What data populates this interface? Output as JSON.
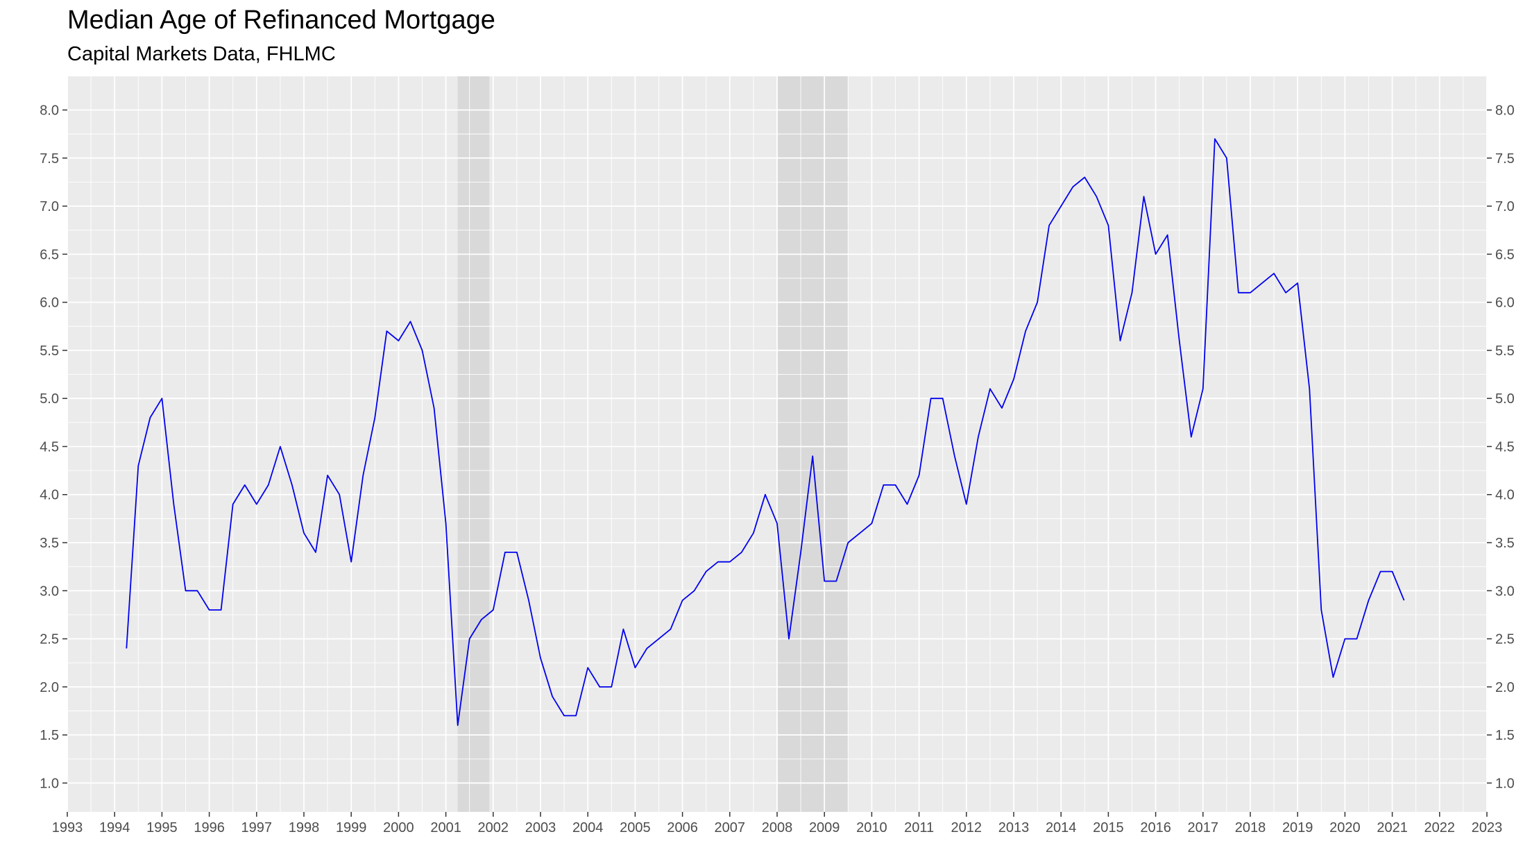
{
  "chart_data": {
    "type": "line",
    "title": "Median Age of Refinanced Mortgage",
    "subtitle": "Capital Markets Data, FHLMC",
    "xlabel": "",
    "ylabel": "",
    "xlim": [
      1993,
      2023
    ],
    "ylim": [
      0.7,
      8.35
    ],
    "x_ticks": [
      1993,
      1994,
      1995,
      1996,
      1997,
      1998,
      1999,
      2000,
      2001,
      2002,
      2003,
      2004,
      2005,
      2006,
      2007,
      2008,
      2009,
      2010,
      2011,
      2012,
      2013,
      2014,
      2015,
      2016,
      2017,
      2018,
      2019,
      2020,
      2021,
      2022,
      2023
    ],
    "y_ticks": [
      1.0,
      1.5,
      2.0,
      2.5,
      3.0,
      3.5,
      4.0,
      4.5,
      5.0,
      5.5,
      6.0,
      6.5,
      7.0,
      7.5,
      8.0
    ],
    "y_tick_labels": [
      "1.0",
      "1.5",
      "2.0",
      "2.5",
      "3.0",
      "3.5",
      "4.0",
      "4.5",
      "5.0",
      "5.5",
      "6.0",
      "6.5",
      "7.0",
      "7.5",
      "8.0"
    ],
    "grid": true,
    "legend": "none",
    "recession_bands": [
      {
        "start": 2001.25,
        "end": 2001.92
      },
      {
        "start": 2008.0,
        "end": 2009.5
      }
    ],
    "line_color": "#0000ee",
    "band_color": "#d9d9d9",
    "panel_color": "#ebebeb",
    "series": [
      {
        "x": [
          1994.25,
          1994.5,
          1994.75,
          1995.0,
          1995.25,
          1995.5,
          1995.75,
          1996.0,
          1996.25,
          1996.5,
          1996.75,
          1997.0,
          1997.25,
          1997.5,
          1997.75,
          1998.0,
          1998.25,
          1998.5,
          1998.75,
          1999.0,
          1999.25,
          1999.5,
          1999.75,
          2000.0,
          2000.25,
          2000.5,
          2000.75,
          2001.0,
          2001.25,
          2001.5,
          2001.75,
          2002.0,
          2002.25,
          2002.5,
          2002.75,
          2003.0,
          2003.25,
          2003.5,
          2003.75,
          2004.0,
          2004.25,
          2004.5,
          2004.75,
          2005.0,
          2005.25,
          2005.5,
          2005.75,
          2006.0,
          2006.25,
          2006.5,
          2006.75,
          2007.0,
          2007.25,
          2007.5,
          2007.75,
          2008.0,
          2008.25,
          2008.5,
          2008.75,
          2009.0,
          2009.25,
          2009.5,
          2009.75,
          2010.0,
          2010.25,
          2010.5,
          2010.75,
          2011.0,
          2011.25,
          2011.5,
          2011.75,
          2012.0,
          2012.25,
          2012.5,
          2012.75,
          2013.0,
          2013.25,
          2013.5,
          2013.75,
          2014.0,
          2014.25,
          2014.5,
          2014.75,
          2015.0,
          2015.25,
          2015.5,
          2015.75,
          2016.0,
          2016.25,
          2016.5,
          2016.75,
          2017.0,
          2017.25,
          2017.5,
          2017.75,
          2018.0,
          2018.25,
          2018.5,
          2018.75,
          2019.0,
          2019.25,
          2019.5,
          2019.75,
          2020.0,
          2020.25,
          2020.5,
          2020.75,
          2021.0,
          2021.25
        ],
        "values": [
          2.4,
          4.3,
          4.8,
          5.0,
          3.9,
          3.0,
          3.0,
          2.8,
          2.8,
          3.9,
          4.1,
          3.9,
          4.1,
          4.5,
          4.1,
          3.6,
          3.4,
          4.2,
          4.0,
          3.3,
          4.2,
          4.8,
          5.7,
          5.6,
          5.8,
          5.5,
          4.9,
          3.7,
          1.6,
          2.5,
          2.7,
          2.8,
          3.4,
          3.4,
          2.9,
          2.3,
          1.9,
          1.7,
          1.7,
          2.2,
          2.0,
          2.0,
          2.6,
          2.2,
          2.4,
          2.5,
          2.6,
          2.9,
          3.0,
          3.2,
          3.3,
          3.3,
          3.4,
          3.6,
          4.0,
          3.7,
          2.5,
          3.4,
          4.4,
          3.1,
          3.1,
          3.5,
          3.6,
          3.7,
          4.1,
          4.1,
          3.9,
          4.2,
          5.0,
          5.0,
          4.4,
          3.9,
          4.6,
          5.1,
          4.9,
          5.2,
          5.7,
          6.0,
          6.8,
          7.0,
          7.2,
          7.3,
          7.1,
          6.8,
          5.6,
          6.1,
          7.1,
          6.5,
          6.7,
          5.6,
          4.6,
          5.1,
          7.7,
          7.5,
          6.1,
          6.1,
          6.2,
          6.3,
          6.1,
          6.2,
          5.1,
          2.8,
          2.1,
          2.5,
          2.5,
          2.9,
          3.2,
          3.2,
          2.9
        ]
      }
    ]
  }
}
